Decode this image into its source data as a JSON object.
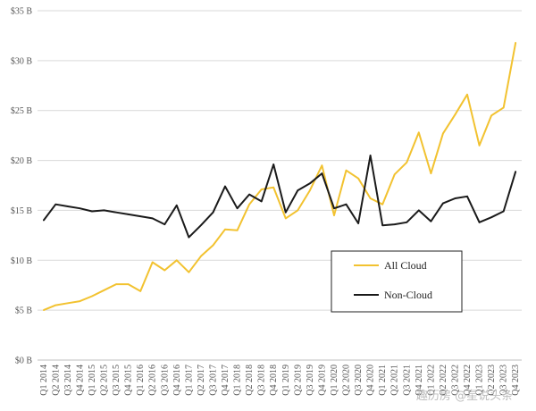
{
  "chart_data": {
    "type": "line",
    "title": "",
    "xlabel": "",
    "ylabel": "",
    "ylim": [
      0,
      35
    ],
    "y_ticks": [
      {
        "value": 0,
        "label": "$0 B"
      },
      {
        "value": 5,
        "label": "$5 B"
      },
      {
        "value": 10,
        "label": "$10 B"
      },
      {
        "value": 15,
        "label": "$15 B"
      },
      {
        "value": 20,
        "label": "$20 B"
      },
      {
        "value": 25,
        "label": "$25 B"
      },
      {
        "value": 30,
        "label": "$30 B"
      },
      {
        "value": 35,
        "label": "$35 B"
      }
    ],
    "grid": "horizontal",
    "legend_position": "lower-right",
    "categories": [
      "Q1 2014",
      "Q2 2014",
      "Q3 2014",
      "Q4 2014",
      "Q1 2015",
      "Q2 2015",
      "Q3 2015",
      "Q4 2015",
      "Q1 2016",
      "Q2 2016",
      "Q3 2016",
      "Q4 2016",
      "Q1 2017",
      "Q2 2017",
      "Q3 2017",
      "Q4 2017",
      "Q1 2018",
      "Q2 2018",
      "Q3 2018",
      "Q4 2018",
      "Q1 2019",
      "Q2 2019",
      "Q3 2019",
      "Q4 2019",
      "Q1 2020",
      "Q2 2020",
      "Q3 2020",
      "Q4 2020",
      "Q1 2021",
      "Q2 2021",
      "Q3 2021",
      "Q4 2021",
      "Q1 2022",
      "Q2 2022",
      "Q3 2022",
      "Q4 2022",
      "Q1 2023",
      "Q2 2023",
      "Q3 2023",
      "Q4 2023"
    ],
    "series": [
      {
        "name": "All Cloud",
        "color": "#f2c230",
        "values": [
          5.0,
          5.5,
          5.7,
          5.9,
          6.4,
          7.0,
          7.6,
          7.6,
          6.9,
          9.8,
          9.0,
          10.0,
          8.8,
          10.4,
          11.5,
          13.1,
          13.0,
          15.6,
          17.1,
          17.3,
          14.2,
          15.0,
          17.0,
          19.5,
          14.5,
          19.0,
          18.2,
          16.2,
          15.6,
          18.6,
          19.8,
          22.8,
          18.7,
          22.7,
          24.6,
          26.6,
          21.5,
          24.5,
          25.3,
          31.8
        ]
      },
      {
        "name": "Non-Cloud",
        "color": "#1a1a1a",
        "values": [
          14.0,
          15.6,
          15.4,
          15.2,
          14.9,
          15.0,
          14.8,
          14.6,
          14.4,
          14.2,
          13.6,
          15.5,
          12.3,
          13.5,
          14.8,
          17.4,
          15.2,
          16.6,
          15.9,
          19.6,
          14.8,
          17.0,
          17.7,
          18.7,
          15.2,
          15.6,
          13.7,
          20.5,
          13.5,
          13.6,
          13.8,
          15.0,
          13.9,
          15.7,
          16.2,
          16.4,
          13.8,
          14.3,
          14.9,
          18.9
        ]
      }
    ]
  },
  "watermark": {
    "text": "趣历房 @星说头条"
  }
}
